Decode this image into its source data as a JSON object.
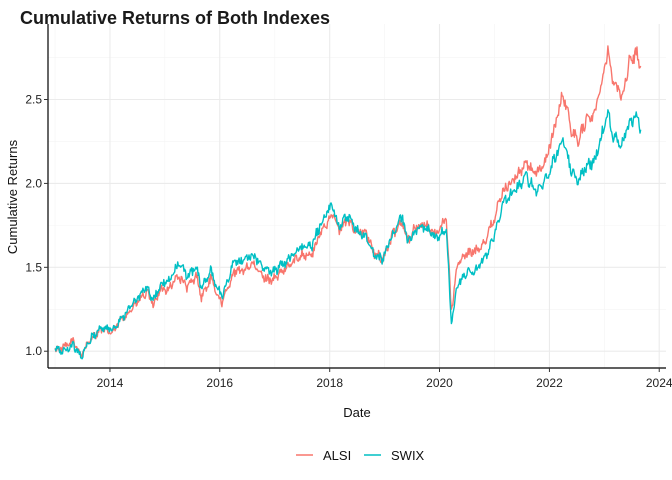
{
  "chart_data": {
    "type": "line",
    "title": "Cumulative Returns of Both Indexes",
    "xlabel": "Date",
    "ylabel": "Cumulative Returns",
    "x_ticks": [
      "2014",
      "2016",
      "2018",
      "2020",
      "2022",
      "2024"
    ],
    "y_ticks": [
      "1.0",
      "1.5",
      "2.0",
      "2.5"
    ],
    "xlim": [
      "2012-11-15",
      "2024-02-15"
    ],
    "ylim": [
      0.9,
      2.95
    ],
    "grid": true,
    "legend_position": "bottom",
    "series": [
      {
        "name": "ALSI",
        "color": "#F8766D",
        "points": [
          [
            "2013-01-02",
            1.01
          ],
          [
            "2013-03-01",
            1.02
          ],
          [
            "2013-05-01",
            1.06
          ],
          [
            "2013-06-25",
            0.98
          ],
          [
            "2013-09-01",
            1.08
          ],
          [
            "2013-11-01",
            1.13
          ],
          [
            "2014-01-20",
            1.11
          ],
          [
            "2014-03-01",
            1.17
          ],
          [
            "2014-06-01",
            1.26
          ],
          [
            "2014-09-01",
            1.35
          ],
          [
            "2014-10-15",
            1.28
          ],
          [
            "2014-12-01",
            1.36
          ],
          [
            "2015-02-01",
            1.38
          ],
          [
            "2015-04-01",
            1.45
          ],
          [
            "2015-06-01",
            1.38
          ],
          [
            "2015-08-01",
            1.45
          ],
          [
            "2015-09-01",
            1.32
          ],
          [
            "2015-11-01",
            1.43
          ],
          [
            "2015-12-15",
            1.34
          ],
          [
            "2016-01-20",
            1.29
          ],
          [
            "2016-04-01",
            1.47
          ],
          [
            "2016-06-01",
            1.48
          ],
          [
            "2016-08-01",
            1.52
          ],
          [
            "2016-11-01",
            1.43
          ],
          [
            "2017-01-01",
            1.43
          ],
          [
            "2017-03-01",
            1.48
          ],
          [
            "2017-05-01",
            1.53
          ],
          [
            "2017-07-01",
            1.58
          ],
          [
            "2017-09-01",
            1.57
          ],
          [
            "2017-11-01",
            1.7
          ],
          [
            "2018-01-20",
            1.83
          ],
          [
            "2018-03-01",
            1.72
          ],
          [
            "2018-05-01",
            1.78
          ],
          [
            "2018-07-01",
            1.72
          ],
          [
            "2018-09-01",
            1.7
          ],
          [
            "2018-10-25",
            1.58
          ],
          [
            "2018-12-20",
            1.55
          ],
          [
            "2019-03-01",
            1.7
          ],
          [
            "2019-05-01",
            1.78
          ],
          [
            "2019-06-01",
            1.66
          ],
          [
            "2019-08-01",
            1.74
          ],
          [
            "2019-10-01",
            1.76
          ],
          [
            "2019-12-01",
            1.69
          ],
          [
            "2020-02-15",
            1.8
          ],
          [
            "2020-03-20",
            1.24
          ],
          [
            "2020-05-01",
            1.52
          ],
          [
            "2020-07-01",
            1.58
          ],
          [
            "2020-09-01",
            1.6
          ],
          [
            "2020-11-01",
            1.66
          ],
          [
            "2021-01-01",
            1.8
          ],
          [
            "2021-03-01",
            1.96
          ],
          [
            "2021-06-01",
            2.05
          ],
          [
            "2021-08-01",
            2.12
          ],
          [
            "2021-10-01",
            2.06
          ],
          [
            "2021-12-01",
            2.12
          ],
          [
            "2022-02-01",
            2.32
          ],
          [
            "2022-04-01",
            2.54
          ],
          [
            "2022-06-01",
            2.3
          ],
          [
            "2022-07-15",
            2.26
          ],
          [
            "2022-09-01",
            2.38
          ],
          [
            "2022-11-01",
            2.42
          ],
          [
            "2023-01-25",
            2.8
          ],
          [
            "2023-03-01",
            2.6
          ],
          [
            "2023-05-01",
            2.52
          ],
          [
            "2023-06-15",
            2.72
          ],
          [
            "2023-08-01",
            2.78
          ],
          [
            "2023-08-31",
            2.7
          ]
        ]
      },
      {
        "name": "SWIX",
        "color": "#00BFC4",
        "points": [
          [
            "2013-01-02",
            1.01
          ],
          [
            "2013-03-01",
            1.0
          ],
          [
            "2013-05-01",
            1.04
          ],
          [
            "2013-06-25",
            0.97
          ],
          [
            "2013-09-01",
            1.08
          ],
          [
            "2013-11-01",
            1.14
          ],
          [
            "2014-01-20",
            1.13
          ],
          [
            "2014-03-01",
            1.18
          ],
          [
            "2014-06-01",
            1.28
          ],
          [
            "2014-09-01",
            1.38
          ],
          [
            "2014-10-15",
            1.3
          ],
          [
            "2014-12-01",
            1.39
          ],
          [
            "2015-02-01",
            1.42
          ],
          [
            "2015-04-01",
            1.52
          ],
          [
            "2015-06-01",
            1.45
          ],
          [
            "2015-08-01",
            1.5
          ],
          [
            "2015-09-01",
            1.37
          ],
          [
            "2015-11-01",
            1.48
          ],
          [
            "2015-12-15",
            1.38
          ],
          [
            "2016-01-20",
            1.33
          ],
          [
            "2016-04-01",
            1.53
          ],
          [
            "2016-06-01",
            1.54
          ],
          [
            "2016-08-01",
            1.58
          ],
          [
            "2016-11-01",
            1.48
          ],
          [
            "2017-01-01",
            1.48
          ],
          [
            "2017-03-01",
            1.52
          ],
          [
            "2017-05-01",
            1.58
          ],
          [
            "2017-07-01",
            1.62
          ],
          [
            "2017-09-01",
            1.62
          ],
          [
            "2017-11-01",
            1.76
          ],
          [
            "2018-01-20",
            1.87
          ],
          [
            "2018-03-01",
            1.75
          ],
          [
            "2018-05-01",
            1.8
          ],
          [
            "2018-07-01",
            1.72
          ],
          [
            "2018-09-01",
            1.68
          ],
          [
            "2018-10-25",
            1.57
          ],
          [
            "2018-12-20",
            1.55
          ],
          [
            "2019-03-01",
            1.71
          ],
          [
            "2019-05-01",
            1.8
          ],
          [
            "2019-06-01",
            1.66
          ],
          [
            "2019-08-01",
            1.72
          ],
          [
            "2019-10-01",
            1.74
          ],
          [
            "2019-12-01",
            1.67
          ],
          [
            "2020-02-15",
            1.72
          ],
          [
            "2020-03-20",
            1.16
          ],
          [
            "2020-05-01",
            1.4
          ],
          [
            "2020-07-01",
            1.47
          ],
          [
            "2020-09-01",
            1.48
          ],
          [
            "2020-11-01",
            1.56
          ],
          [
            "2021-01-01",
            1.7
          ],
          [
            "2021-03-01",
            1.88
          ],
          [
            "2021-06-01",
            1.98
          ],
          [
            "2021-08-01",
            2.04
          ],
          [
            "2021-10-01",
            1.96
          ],
          [
            "2021-12-01",
            2.01
          ],
          [
            "2022-02-01",
            2.14
          ],
          [
            "2022-04-01",
            2.28
          ],
          [
            "2022-06-01",
            2.06
          ],
          [
            "2022-07-15",
            2.02
          ],
          [
            "2022-09-01",
            2.1
          ],
          [
            "2022-11-01",
            2.14
          ],
          [
            "2023-01-25",
            2.42
          ],
          [
            "2023-03-01",
            2.28
          ],
          [
            "2023-05-01",
            2.24
          ],
          [
            "2023-06-15",
            2.36
          ],
          [
            "2023-08-01",
            2.4
          ],
          [
            "2023-08-31",
            2.32
          ]
        ]
      }
    ]
  }
}
